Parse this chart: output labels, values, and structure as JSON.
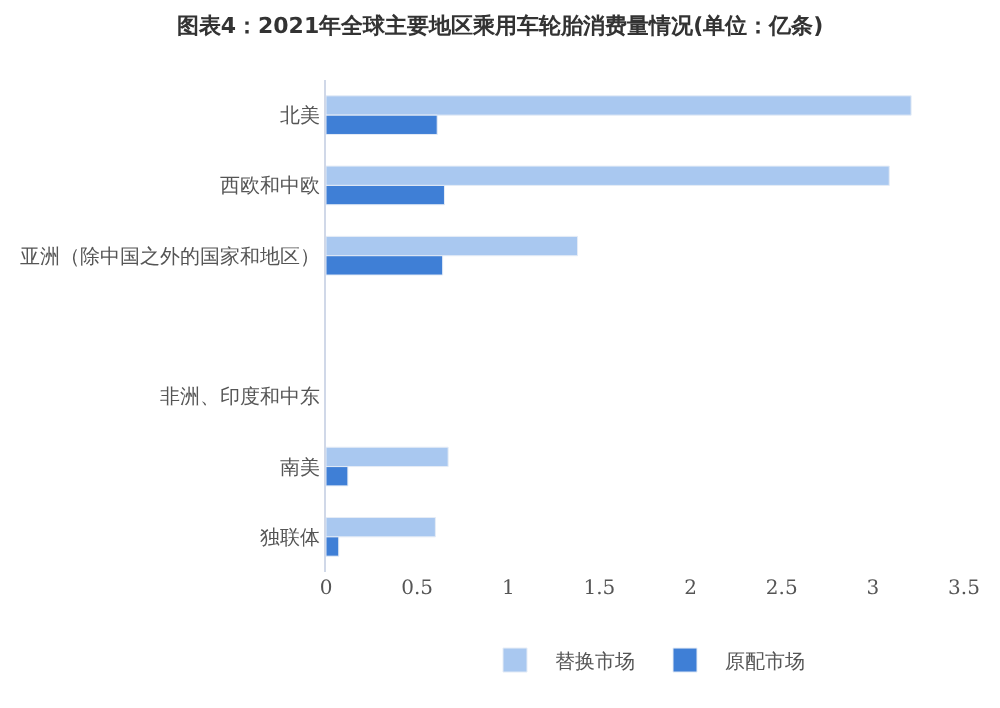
{
  "chart_data": {
    "type": "bar",
    "orientation": "horizontal",
    "title": "图表4：2021年全球主要地区乘用车轮胎消费量情况(单位：亿条)",
    "categories": [
      "北美",
      "西欧和中欧",
      "亚洲（除中国之外的国家和地区）",
      null,
      "非洲、印度和中东",
      "南美",
      "独联体"
    ],
    "series": [
      {
        "name": "替换市场",
        "color": "#a9c8f0",
        "values": [
          3.21,
          3.09,
          1.38,
          null,
          null,
          0.67,
          0.6
        ]
      },
      {
        "name": "原配市场",
        "color": "#3f7fd6",
        "values": [
          0.61,
          0.65,
          0.64,
          null,
          null,
          0.12,
          0.07
        ]
      }
    ],
    "xlim": [
      0,
      3.5
    ],
    "xticks": [
      0,
      0.5,
      1,
      1.5,
      2,
      2.5,
      3,
      3.5
    ],
    "legend": "bottom"
  }
}
